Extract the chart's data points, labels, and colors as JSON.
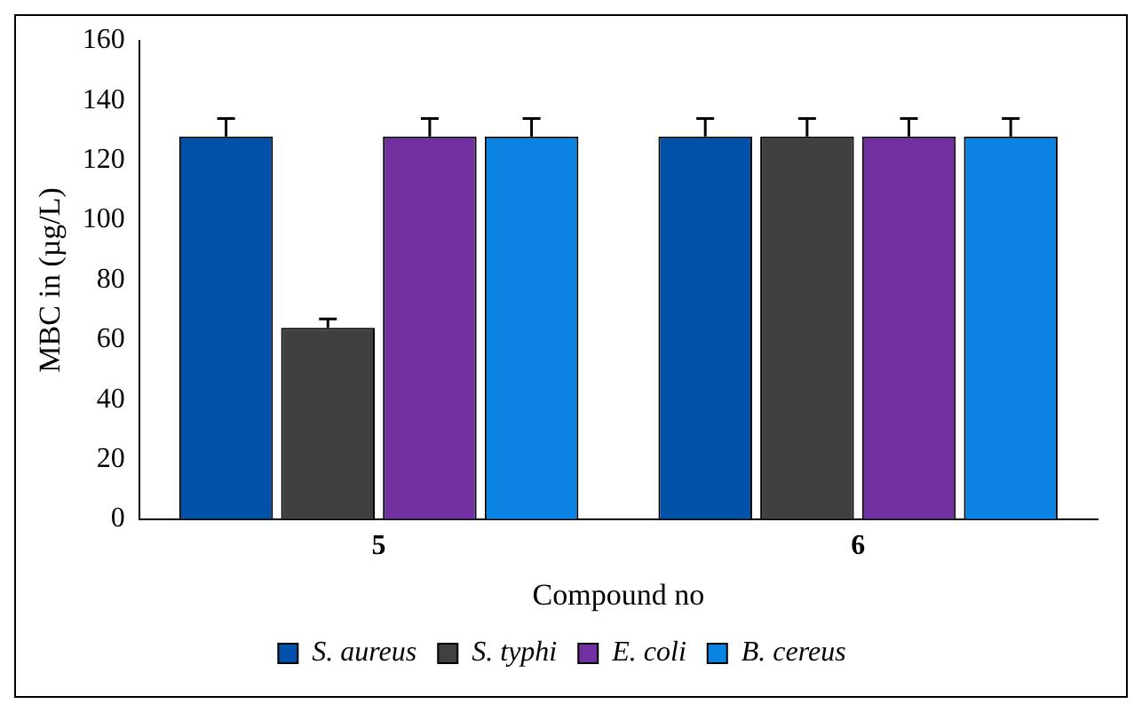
{
  "chart_data": {
    "type": "bar",
    "xlabel": "Compound no",
    "ylabel": "MBC in (µg/L)",
    "categories": [
      "5",
      "6"
    ],
    "series": [
      {
        "name": "S. aureus",
        "color": "#0052a8",
        "values": [
          128,
          128
        ],
        "errors": [
          [
            128,
            134
          ],
          [
            128,
            134
          ]
        ]
      },
      {
        "name": "S. typhi",
        "color": "#404040",
        "values": [
          64,
          128
        ],
        "errors": [
          [
            64,
            67
          ],
          [
            128,
            134
          ]
        ]
      },
      {
        "name": "E. coli",
        "color": "#7030a0",
        "values": [
          128,
          128
        ],
        "errors": [
          [
            128,
            134
          ],
          [
            128,
            134
          ]
        ]
      },
      {
        "name": "B. cereus",
        "color": "#0a84e0",
        "values": [
          128,
          128
        ],
        "errors": [
          [
            128,
            134
          ],
          [
            128,
            134
          ]
        ]
      }
    ],
    "ylim": [
      0,
      160
    ],
    "yticks": [
      0,
      20,
      40,
      60,
      80,
      100,
      120,
      140,
      160
    ],
    "grid": false,
    "legend": "bottom"
  }
}
